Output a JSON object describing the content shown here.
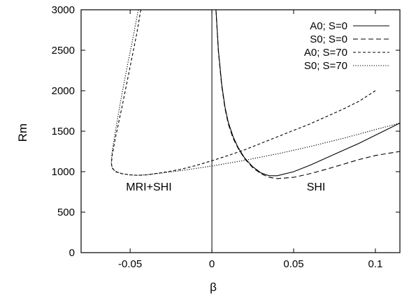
{
  "chart_data": {
    "type": "line",
    "title": "",
    "xlabel": "β",
    "ylabel": "Rm",
    "xlim": [
      -0.08,
      0.115
    ],
    "ylim": [
      0,
      3000
    ],
    "xticks": [
      -0.05,
      0,
      0.05,
      0.1
    ],
    "xtick_labels": [
      "-0.05",
      "0",
      "0.05",
      "0.1"
    ],
    "yticks": [
      0,
      500,
      1000,
      1500,
      2000,
      2500,
      3000
    ],
    "ytick_labels": [
      "0",
      "500",
      "1000",
      "1500",
      "2000",
      "2500",
      "3000"
    ],
    "grid": false,
    "legend_position": "top-right",
    "annotations": [
      {
        "text": "MRI+SHI",
        "x": -0.0525,
        "y": 820
      },
      {
        "text": "SHI",
        "x": 0.058,
        "y": 820
      }
    ],
    "vertical_line": {
      "x": 0
    },
    "series": [
      {
        "name": "A0; S=0",
        "dash": "solid",
        "x": [
          0.0025,
          0.004,
          0.006,
          0.008,
          0.01,
          0.013,
          0.016,
          0.02,
          0.025,
          0.03,
          0.035,
          0.04,
          0.05,
          0.06,
          0.07,
          0.08,
          0.09,
          0.1,
          0.115
        ],
        "y": [
          3000,
          2500,
          2080,
          1800,
          1610,
          1430,
          1300,
          1170,
          1060,
          985,
          950,
          950,
          1000,
          1080,
          1170,
          1260,
          1350,
          1450,
          1600
        ]
      },
      {
        "name": "S0; S=0",
        "dash": "long-dash",
        "x": [
          0.0025,
          0.004,
          0.006,
          0.008,
          0.01,
          0.013,
          0.016,
          0.02,
          0.025,
          0.03,
          0.035,
          0.04,
          0.05,
          0.06,
          0.07,
          0.08,
          0.09,
          0.1,
          0.115
        ],
        "y": [
          3000,
          2480,
          2060,
          1780,
          1590,
          1410,
          1290,
          1160,
          1050,
          975,
          930,
          915,
          930,
          975,
          1030,
          1090,
          1150,
          1200,
          1250
        ]
      },
      {
        "name": "A0; S=70",
        "dash": "short-dash",
        "x": [
          -0.0435,
          -0.046,
          -0.05,
          -0.055,
          -0.059,
          -0.061,
          -0.0615,
          -0.061,
          -0.059,
          -0.055,
          -0.05,
          -0.045,
          -0.04,
          -0.03,
          -0.02,
          -0.01,
          0,
          0.01,
          0.02,
          0.03,
          0.04,
          0.05,
          0.06,
          0.07,
          0.08,
          0.09,
          0.1
        ],
        "y": [
          3000,
          2700,
          2300,
          1800,
          1420,
          1200,
          1100,
          1045,
          1000,
          975,
          960,
          955,
          960,
          990,
          1025,
          1075,
          1135,
          1200,
          1270,
          1350,
          1430,
          1510,
          1590,
          1680,
          1770,
          1870,
          2000
        ]
      },
      {
        "name": "S0; S=70",
        "dash": "dotted",
        "x": [
          -0.045,
          -0.048,
          -0.052,
          -0.056,
          -0.059,
          -0.061,
          -0.0615,
          -0.061,
          -0.059,
          -0.055,
          -0.05,
          -0.045,
          -0.04,
          -0.03,
          -0.02,
          -0.01,
          0,
          0.01,
          0.02,
          0.03,
          0.04,
          0.05,
          0.06,
          0.07,
          0.08,
          0.09,
          0.1,
          0.115
        ],
        "y": [
          3000,
          2680,
          2280,
          1850,
          1500,
          1250,
          1120,
          1050,
          1005,
          975,
          960,
          955,
          962,
          985,
          1010,
          1040,
          1070,
          1105,
          1140,
          1180,
          1220,
          1265,
          1310,
          1360,
          1410,
          1465,
          1520,
          1600
        ]
      }
    ]
  }
}
